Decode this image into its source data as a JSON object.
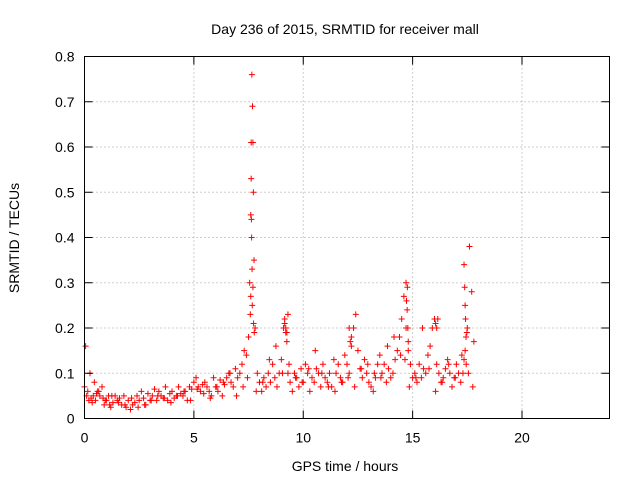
{
  "chart_data": {
    "type": "scatter",
    "title": "Day 236 of 2015, SRMTID for receiver mall",
    "xlabel": "GPS time / hours",
    "ylabel": "SRMTID / TECUs",
    "xlim": [
      0,
      24
    ],
    "ylim": [
      0,
      0.8
    ],
    "grid": true,
    "marker": "+",
    "color": "#ff0000",
    "xticks": [
      0,
      5,
      10,
      15,
      20
    ],
    "xtick_labels": [
      "0",
      "5",
      "10",
      "15",
      "20"
    ],
    "yticks": [
      0,
      0.1,
      0.2,
      0.3,
      0.4,
      0.5,
      0.6,
      0.7,
      0.8
    ],
    "ytick_labels": [
      "0",
      "0.1",
      "0.2",
      "0.3",
      "0.4",
      "0.5",
      "0.6",
      "0.7",
      "0.8"
    ],
    "series": [
      {
        "name": "SRMTID",
        "x": [
          0.0,
          0.1,
          0.15,
          0.2,
          0.3,
          0.35,
          0.4,
          0.5,
          0.55,
          0.6,
          0.7,
          0.8,
          0.85,
          0.9,
          1.0,
          1.1,
          1.15,
          1.2,
          1.3,
          1.4,
          1.5,
          1.6,
          1.7,
          1.8,
          1.9,
          2.0,
          2.1,
          2.2,
          2.3,
          2.4,
          2.5,
          2.6,
          2.7,
          2.8,
          2.9,
          3.0,
          3.1,
          3.2,
          3.3,
          3.4,
          3.5,
          3.6,
          3.7,
          3.8,
          3.9,
          4.0,
          4.1,
          4.2,
          4.3,
          4.4,
          4.5,
          4.6,
          4.7,
          4.8,
          4.9,
          5.0,
          5.1,
          5.2,
          5.3,
          5.4,
          5.5,
          5.6,
          5.7,
          5.8,
          5.9,
          6.0,
          6.1,
          6.2,
          6.3,
          6.4,
          6.5,
          6.6,
          6.7,
          6.8,
          6.9,
          7.0,
          7.1,
          7.2,
          7.3,
          7.4,
          7.5,
          7.55,
          7.6,
          7.62,
          7.65,
          7.68,
          7.7,
          7.72,
          7.75,
          7.8,
          7.9,
          8.0,
          8.1,
          8.2,
          8.3,
          8.4,
          8.5,
          8.6,
          8.7,
          8.8,
          8.9,
          9.0,
          9.1,
          9.15,
          9.2,
          9.25,
          9.3,
          9.4,
          9.5,
          9.6,
          9.7,
          9.8,
          9.9,
          10.0,
          10.1,
          10.2,
          10.3,
          10.4,
          10.5,
          10.6,
          10.7,
          10.8,
          10.9,
          11.0,
          11.1,
          11.2,
          11.3,
          11.4,
          11.5,
          11.6,
          11.7,
          11.8,
          11.9,
          12.0,
          12.1,
          12.2,
          12.3,
          12.4,
          12.5,
          12.6,
          12.7,
          12.8,
          12.9,
          13.0,
          13.1,
          13.2,
          13.3,
          13.4,
          13.5,
          13.6,
          13.7,
          13.8,
          13.9,
          14.0,
          14.1,
          14.2,
          14.3,
          14.4,
          14.5,
          14.6,
          14.7,
          14.75,
          14.8,
          14.9,
          15.0,
          15.1,
          15.2,
          15.3,
          15.4,
          15.5,
          15.6,
          15.7,
          15.8,
          15.9,
          16.0,
          16.1,
          16.2,
          16.3,
          16.4,
          16.5,
          16.6,
          16.7,
          16.8,
          16.9,
          17.0,
          17.1,
          17.2,
          17.3,
          17.35,
          17.4,
          17.45,
          17.5,
          17.6,
          17.7,
          17.8,
          0.05,
          0.25,
          0.45,
          0.65,
          0.95,
          1.25,
          1.55,
          1.85,
          2.15,
          2.45,
          2.75,
          3.05,
          3.35,
          3.65,
          3.95,
          4.25,
          4.55,
          4.85,
          5.15,
          5.45,
          5.75,
          6.05,
          6.35,
          6.65,
          6.95,
          7.25,
          7.45,
          7.85,
          8.15,
          8.45,
          8.75,
          9.05,
          9.35,
          9.65,
          9.95,
          10.25,
          10.55,
          10.85,
          11.15,
          11.45,
          11.75,
          12.05,
          12.35,
          12.65,
          12.95,
          13.25,
          13.55,
          13.85,
          14.15,
          14.45,
          14.65,
          14.85,
          15.15,
          15.45,
          15.75,
          16.05,
          16.35,
          16.65,
          16.95,
          17.25,
          17.55,
          17.75,
          7.62,
          7.63,
          7.64,
          7.6,
          7.58,
          7.66,
          7.67,
          7.7,
          7.73,
          7.76,
          14.7,
          14.72,
          14.76,
          14.78,
          14.8,
          16.0,
          16.05,
          16.1,
          16.15,
          17.35,
          17.38,
          17.4,
          17.42,
          17.44,
          17.48,
          12.1,
          12.15,
          12.2,
          9.15,
          9.2,
          9.3,
          9.25
        ],
        "y": [
          0.07,
          0.05,
          0.06,
          0.04,
          0.045,
          0.035,
          0.05,
          0.04,
          0.055,
          0.06,
          0.05,
          0.07,
          0.045,
          0.03,
          0.04,
          0.05,
          0.03,
          0.025,
          0.035,
          0.05,
          0.04,
          0.045,
          0.03,
          0.05,
          0.025,
          0.04,
          0.02,
          0.03,
          0.035,
          0.05,
          0.04,
          0.06,
          0.045,
          0.03,
          0.055,
          0.04,
          0.05,
          0.065,
          0.04,
          0.06,
          0.05,
          0.045,
          0.07,
          0.04,
          0.055,
          0.06,
          0.045,
          0.05,
          0.07,
          0.055,
          0.05,
          0.06,
          0.04,
          0.07,
          0.065,
          0.08,
          0.09,
          0.07,
          0.06,
          0.075,
          0.08,
          0.07,
          0.06,
          0.05,
          0.09,
          0.07,
          0.06,
          0.085,
          0.05,
          0.075,
          0.09,
          0.1,
          0.08,
          0.07,
          0.11,
          0.09,
          0.1,
          0.12,
          0.15,
          0.14,
          0.18,
          0.3,
          0.45,
          0.53,
          0.76,
          0.69,
          0.61,
          0.5,
          0.35,
          0.2,
          0.1,
          0.08,
          0.06,
          0.09,
          0.07,
          0.1,
          0.08,
          0.12,
          0.09,
          0.07,
          0.1,
          0.13,
          0.2,
          0.22,
          0.19,
          0.17,
          0.1,
          0.08,
          0.06,
          0.1,
          0.09,
          0.07,
          0.11,
          0.08,
          0.12,
          0.1,
          0.06,
          0.09,
          0.08,
          0.11,
          0.1,
          0.07,
          0.12,
          0.09,
          0.08,
          0.1,
          0.07,
          0.13,
          0.1,
          0.12,
          0.09,
          0.08,
          0.14,
          0.12,
          0.1,
          0.16,
          0.2,
          0.23,
          0.15,
          0.11,
          0.09,
          0.13,
          0.1,
          0.08,
          0.07,
          0.06,
          0.09,
          0.12,
          0.14,
          0.1,
          0.12,
          0.08,
          0.11,
          0.09,
          0.1,
          0.13,
          0.15,
          0.18,
          0.22,
          0.27,
          0.3,
          0.24,
          0.15,
          0.12,
          0.09,
          0.1,
          0.08,
          0.12,
          0.09,
          0.11,
          0.1,
          0.14,
          0.16,
          0.2,
          0.22,
          0.12,
          0.1,
          0.08,
          0.09,
          0.11,
          0.13,
          0.1,
          0.07,
          0.09,
          0.12,
          0.1,
          0.08,
          0.1,
          0.13,
          0.15,
          0.12,
          0.2,
          0.38,
          0.28,
          0.17,
          0.16,
          0.1,
          0.08,
          0.06,
          0.04,
          0.05,
          0.035,
          0.03,
          0.045,
          0.025,
          0.03,
          0.04,
          0.05,
          0.045,
          0.035,
          0.05,
          0.06,
          0.04,
          0.065,
          0.055,
          0.045,
          0.07,
          0.08,
          0.1,
          0.05,
          0.07,
          0.09,
          0.06,
          0.08,
          0.13,
          0.16,
          0.1,
          0.12,
          0.09,
          0.08,
          0.11,
          0.15,
          0.1,
          0.07,
          0.06,
          0.08,
          0.09,
          0.07,
          0.11,
          0.12,
          0.1,
          0.09,
          0.16,
          0.18,
          0.14,
          0.13,
          0.07,
          0.09,
          0.2,
          0.11,
          0.06,
          0.08,
          0.12,
          0.09,
          0.14,
          0.1,
          0.07,
          0.61,
          0.44,
          0.4,
          0.27,
          0.23,
          0.33,
          0.25,
          0.29,
          0.21,
          0.19,
          0.2,
          0.26,
          0.29,
          0.2,
          0.17,
          0.22,
          0.21,
          0.2,
          0.22,
          0.34,
          0.29,
          0.25,
          0.22,
          0.18,
          0.19,
          0.2,
          0.17,
          0.18,
          0.21,
          0.2,
          0.23,
          0.19
        ]
      }
    ]
  }
}
